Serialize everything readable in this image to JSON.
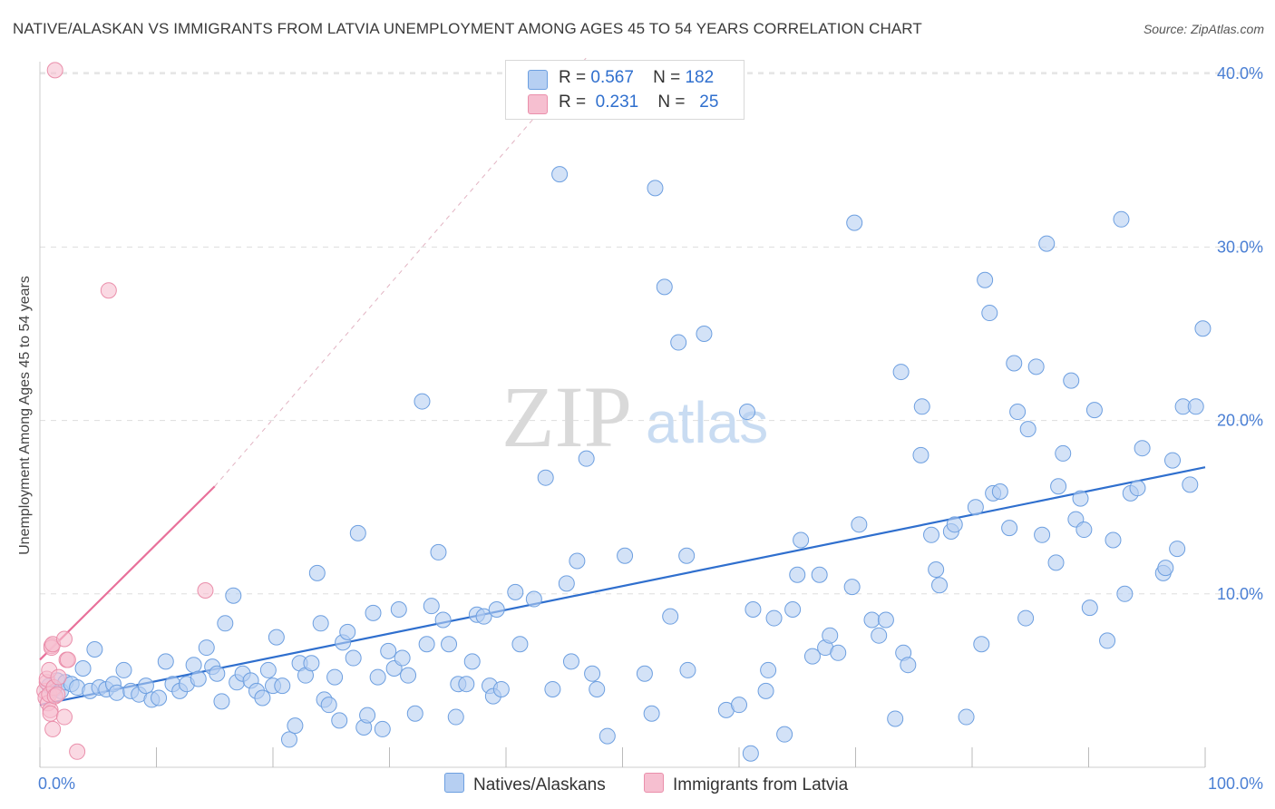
{
  "title": "NATIVE/ALASKAN VS IMMIGRANTS FROM LATVIA UNEMPLOYMENT AMONG AGES 45 TO 54 YEARS CORRELATION CHART",
  "source": "Source: ZipAtlas.com",
  "watermark": {
    "zip": "ZIP",
    "atlas": "atlas"
  },
  "legend": {
    "r_label": "R =",
    "n_label": "N =",
    "rows": [
      {
        "r": "0.567",
        "n": "182"
      },
      {
        "r": "0.231",
        "n": "25"
      }
    ]
  },
  "bottom_legend": [
    "Natives/Alaskans",
    "Immigrants from Latvia"
  ],
  "colors": {
    "blue_fill": "#b6cff2",
    "blue_stroke": "#6d9fe0",
    "blue_line": "#2f6fce",
    "pink_fill": "#f6bfd0",
    "pink_stroke": "#ea8fab",
    "pink_line": "#e8709a",
    "tick_text": "#4a7fd4",
    "grid": "#dddddd"
  },
  "chart_data": {
    "type": "scatter",
    "title": "NATIVE/ALASKAN VS IMMIGRANTS FROM LATVIA UNEMPLOYMENT AMONG AGES 45 TO 54 YEARS CORRELATION CHART",
    "xlabel": "",
    "ylabel": "Unemployment Among Ages 45 to 54 years",
    "xlim": [
      0,
      100
    ],
    "ylim": [
      0,
      41
    ],
    "x_tick_labels": [
      "0.0%",
      "100.0%"
    ],
    "y_ticks": [
      10,
      20,
      30,
      40
    ],
    "y_tick_labels": [
      "10.0%",
      "20.0%",
      "30.0%",
      "40.0%"
    ],
    "grid": "dashed horizontal",
    "legend_position": "top-center",
    "series": [
      {
        "name": "Natives/Alaskans",
        "r": 0.567,
        "n": 182,
        "trend": {
          "x": [
            0,
            100
          ],
          "y": [
            3.6,
            17.3
          ]
        },
        "points": [
          [
            0.8,
            4.7
          ],
          [
            1.2,
            4.5
          ],
          [
            1.5,
            5.0
          ],
          [
            1.8,
            4.4
          ],
          [
            2.2,
            4.9
          ],
          [
            2.7,
            4.8
          ],
          [
            3.2,
            4.6
          ],
          [
            3.7,
            5.7
          ],
          [
            4.3,
            4.4
          ],
          [
            4.7,
            6.8
          ],
          [
            5.1,
            4.6
          ],
          [
            5.7,
            4.5
          ],
          [
            6.3,
            4.8
          ],
          [
            6.6,
            4.3
          ],
          [
            7.2,
            5.6
          ],
          [
            7.8,
            4.4
          ],
          [
            8.5,
            4.2
          ],
          [
            9.1,
            4.7
          ],
          [
            9.6,
            3.9
          ],
          [
            10.2,
            4.0
          ],
          [
            10.8,
            6.1
          ],
          [
            11.4,
            4.8
          ],
          [
            12.0,
            4.4
          ],
          [
            12.6,
            4.8
          ],
          [
            13.2,
            5.9
          ],
          [
            13.6,
            5.1
          ],
          [
            14.3,
            6.9
          ],
          [
            14.8,
            5.8
          ],
          [
            15.2,
            5.4
          ],
          [
            15.6,
            3.8
          ],
          [
            15.9,
            8.3
          ],
          [
            16.6,
            9.9
          ],
          [
            16.9,
            4.9
          ],
          [
            17.4,
            5.4
          ],
          [
            18.1,
            5.0
          ],
          [
            18.6,
            4.4
          ],
          [
            19.1,
            4.0
          ],
          [
            19.6,
            5.6
          ],
          [
            20.0,
            4.7
          ],
          [
            20.3,
            7.5
          ],
          [
            20.8,
            4.7
          ],
          [
            21.4,
            1.6
          ],
          [
            21.9,
            2.4
          ],
          [
            22.3,
            6.0
          ],
          [
            22.8,
            5.3
          ],
          [
            23.3,
            6.0
          ],
          [
            23.8,
            11.2
          ],
          [
            24.1,
            8.3
          ],
          [
            24.4,
            3.9
          ],
          [
            24.8,
            3.6
          ],
          [
            25.3,
            5.2
          ],
          [
            25.7,
            2.7
          ],
          [
            26.0,
            7.2
          ],
          [
            26.4,
            7.8
          ],
          [
            26.9,
            6.3
          ],
          [
            27.3,
            13.5
          ],
          [
            27.8,
            2.3
          ],
          [
            28.1,
            3.0
          ],
          [
            28.6,
            8.9
          ],
          [
            29.0,
            5.2
          ],
          [
            29.4,
            2.2
          ],
          [
            29.9,
            6.7
          ],
          [
            30.4,
            5.7
          ],
          [
            30.8,
            9.1
          ],
          [
            31.1,
            6.3
          ],
          [
            31.6,
            5.3
          ],
          [
            32.2,
            3.1
          ],
          [
            32.8,
            21.1
          ],
          [
            33.2,
            7.1
          ],
          [
            33.6,
            9.3
          ],
          [
            34.2,
            12.4
          ],
          [
            34.6,
            8.5
          ],
          [
            35.1,
            7.1
          ],
          [
            35.7,
            2.9
          ],
          [
            35.9,
            4.8
          ],
          [
            36.6,
            4.8
          ],
          [
            37.1,
            6.1
          ],
          [
            37.5,
            8.8
          ],
          [
            38.1,
            8.7
          ],
          [
            38.6,
            4.7
          ],
          [
            38.9,
            4.1
          ],
          [
            39.2,
            9.1
          ],
          [
            39.6,
            4.5
          ],
          [
            40.8,
            10.1
          ],
          [
            41.2,
            7.1
          ],
          [
            42.4,
            9.7
          ],
          [
            43.4,
            16.7
          ],
          [
            44.0,
            4.5
          ],
          [
            44.6,
            34.2
          ],
          [
            45.2,
            10.6
          ],
          [
            45.6,
            6.1
          ],
          [
            46.1,
            11.9
          ],
          [
            46.9,
            17.8
          ],
          [
            47.4,
            5.4
          ],
          [
            47.8,
            4.5
          ],
          [
            48.7,
            1.8
          ],
          [
            50.2,
            12.2
          ],
          [
            51.9,
            5.4
          ],
          [
            52.5,
            3.1
          ],
          [
            52.8,
            33.4
          ],
          [
            53.6,
            27.7
          ],
          [
            54.1,
            8.7
          ],
          [
            54.8,
            24.5
          ],
          [
            55.5,
            12.2
          ],
          [
            55.6,
            5.6
          ],
          [
            57.0,
            25.0
          ],
          [
            58.9,
            3.3
          ],
          [
            60.0,
            3.6
          ],
          [
            60.7,
            20.5
          ],
          [
            61.0,
            0.8
          ],
          [
            61.2,
            9.1
          ],
          [
            62.3,
            4.4
          ],
          [
            62.5,
            5.6
          ],
          [
            63.0,
            8.6
          ],
          [
            63.9,
            1.9
          ],
          [
            64.6,
            9.1
          ],
          [
            65.0,
            11.1
          ],
          [
            65.3,
            13.1
          ],
          [
            66.3,
            6.4
          ],
          [
            66.9,
            11.1
          ],
          [
            67.4,
            6.9
          ],
          [
            67.8,
            7.6
          ],
          [
            68.5,
            6.6
          ],
          [
            69.7,
            10.4
          ],
          [
            69.9,
            31.4
          ],
          [
            70.3,
            14.0
          ],
          [
            71.4,
            8.5
          ],
          [
            72.0,
            7.6
          ],
          [
            72.6,
            8.5
          ],
          [
            73.4,
            2.8
          ],
          [
            73.9,
            22.8
          ],
          [
            74.1,
            6.6
          ],
          [
            74.5,
            5.9
          ],
          [
            75.7,
            20.8
          ],
          [
            75.6,
            18.0
          ],
          [
            76.5,
            13.4
          ],
          [
            76.9,
            11.4
          ],
          [
            77.2,
            10.5
          ],
          [
            78.2,
            13.6
          ],
          [
            78.5,
            14.0
          ],
          [
            79.5,
            2.9
          ],
          [
            80.3,
            15.0
          ],
          [
            80.8,
            7.1
          ],
          [
            81.1,
            28.1
          ],
          [
            81.5,
            26.2
          ],
          [
            81.8,
            15.8
          ],
          [
            82.4,
            15.9
          ],
          [
            83.2,
            13.8
          ],
          [
            83.6,
            23.3
          ],
          [
            83.9,
            20.5
          ],
          [
            84.6,
            8.6
          ],
          [
            84.8,
            19.5
          ],
          [
            85.5,
            23.1
          ],
          [
            86.0,
            13.4
          ],
          [
            86.4,
            30.2
          ],
          [
            87.2,
            11.8
          ],
          [
            87.4,
            16.2
          ],
          [
            87.8,
            18.1
          ],
          [
            88.5,
            22.3
          ],
          [
            88.9,
            14.3
          ],
          [
            89.3,
            15.5
          ],
          [
            89.6,
            13.7
          ],
          [
            90.5,
            20.6
          ],
          [
            90.1,
            9.2
          ],
          [
            91.6,
            7.3
          ],
          [
            92.1,
            13.1
          ],
          [
            92.8,
            31.6
          ],
          [
            93.1,
            10.0
          ],
          [
            93.6,
            15.8
          ],
          [
            94.2,
            16.1
          ],
          [
            94.6,
            18.4
          ],
          [
            96.4,
            11.2
          ],
          [
            96.6,
            11.5
          ],
          [
            97.2,
            17.7
          ],
          [
            97.6,
            12.6
          ],
          [
            98.1,
            20.8
          ],
          [
            98.7,
            16.3
          ],
          [
            99.2,
            20.8
          ],
          [
            99.8,
            25.3
          ]
        ]
      },
      {
        "name": "Immigrants from Latvia",
        "r": 0.231,
        "n": 25,
        "trend": {
          "x": [
            0,
            15
          ],
          "y": [
            6.2,
            16.2
          ]
        },
        "trend_extension": {
          "x": [
            15,
            47
          ],
          "y": [
            16.2,
            41
          ]
        },
        "points": [
          [
            0.4,
            4.4
          ],
          [
            0.5,
            4.0
          ],
          [
            0.6,
            4.9
          ],
          [
            0.6,
            5.1
          ],
          [
            0.7,
            3.7
          ],
          [
            0.8,
            5.6
          ],
          [
            0.8,
            4.2
          ],
          [
            0.9,
            3.3
          ],
          [
            0.9,
            3.1
          ],
          [
            1.0,
            7.0
          ],
          [
            1.0,
            6.9
          ],
          [
            1.1,
            7.1
          ],
          [
            1.1,
            2.2
          ],
          [
            1.2,
            4.6
          ],
          [
            1.3,
            4.1
          ],
          [
            1.3,
            40.2
          ],
          [
            1.5,
            4.2
          ],
          [
            1.6,
            5.2
          ],
          [
            2.1,
            2.9
          ],
          [
            2.1,
            7.4
          ],
          [
            2.3,
            6.2
          ],
          [
            2.4,
            6.2
          ],
          [
            3.2,
            0.9
          ],
          [
            5.9,
            27.5
          ],
          [
            14.2,
            10.2
          ]
        ]
      }
    ]
  }
}
